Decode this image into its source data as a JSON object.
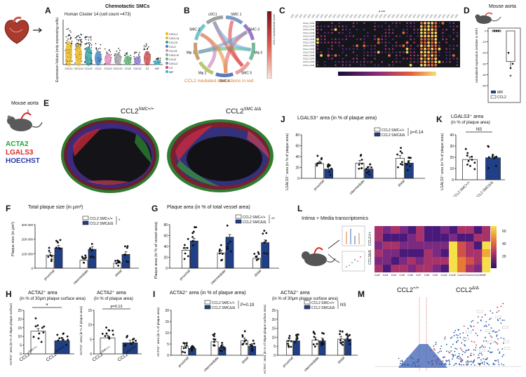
{
  "colors": {
    "white_bar": "#ffffff",
    "navy_bar": "#1f3f86",
    "accent_orange": "#e07a2a",
    "acta2_green": "#22a838",
    "lgals3_red": "#e02424",
    "hoechst_blue": "#2a3aa8"
  },
  "panels": {
    "A": {
      "letter": "A",
      "title": "Chemotactic SMCs",
      "subtitle": "Human Cluster 14 (cell count =473)",
      "ylabel": "Expression Values (only expressing cells)",
      "genes": [
        "CXCL1",
        "CXCL14",
        "CCL19",
        "CCL2",
        "CCL21",
        "CXCL12",
        "CCL8",
        "CXCL2",
        "C3",
        "MIF"
      ]
    },
    "B": {
      "letter": "B",
      "caption": "CCL2 mediated interactions in red",
      "segments": [
        "SMC 1",
        "SMC 3",
        "Mφ 3",
        "SMC 5",
        "SMC 4",
        "Mφ 2",
        "Mφ 1",
        "SMC 2",
        "cDC1"
      ],
      "colorbar_label": "CCL2 involvement score"
    },
    "C": {
      "letter": "C",
      "xlabel": "p-val"
    },
    "D": {
      "letter": "D",
      "title": "Mouse aorta",
      "ylabel": "normalized expression (relative to MIF)",
      "ticks": [
        "0",
        "-10",
        "-20",
        "-30",
        "-40",
        "-50"
      ],
      "legend": [
        "MIF",
        "CCL2"
      ],
      "sig": "*"
    },
    "E": {
      "letter": "E",
      "mouse": "Mouse aorta",
      "stains": [
        "ACTA2",
        "LGALS3",
        "HOECHST"
      ],
      "title_left": "CCL2",
      "title_left_sup": "SMC+/+",
      "title_right": "CCL2",
      "title_right_sup": "SMC Δ/Δ"
    },
    "F": {
      "letter": "F",
      "title": "Total plaque size (in µm²)",
      "ylabel": "Plaque size (in µm²)",
      "sig": "*",
      "ticks": [
        "300 000",
        "200 000",
        "100 000",
        "0"
      ]
    },
    "G": {
      "letter": "G",
      "title": "Plaque area (in % of total vessel area)",
      "ylabel": "Plaque area (in % of vessel area)",
      "sig": "**",
      "ticks": [
        "80",
        "60",
        "40",
        "20",
        "0"
      ]
    },
    "H": {
      "letter": "H",
      "title1": "ACTA2⁺ area",
      "title1b": "(in % of 30µm plaque surface area)",
      "ylabel1": "ACTA2⁺ area (in % of 30µm plaque surface)",
      "sig1": "*",
      "ticks1": [
        "25",
        "20",
        "15",
        "10",
        "5",
        "0"
      ],
      "title2": "ACTA2⁺ area",
      "title2b": "(in % of plaque area)",
      "ylabel2": "ACTA2⁺ area (in % of plaque area)",
      "sig2": "p=0.13",
      "ticks2": [
        "15",
        "10",
        "5",
        "0"
      ]
    },
    "I": {
      "letter": "I",
      "title1": "ACTA2⁺ area (in % of plaque area)",
      "ylabel1": "ACTA2⁺ area (in % of plaque area)",
      "sig1": "P=0.19",
      "ticks1": [
        "20",
        "15",
        "10",
        "5",
        "0"
      ],
      "title2": "ACTA2⁺ area",
      "title2b": "(in % of 30µm plaque surface area)",
      "ylabel2": "ACTA2⁺ area (in % of 30µm plaque surface area)",
      "sig2": "NS",
      "ticks2": [
        "25",
        "20",
        "15",
        "10",
        "5",
        "0"
      ]
    },
    "J": {
      "letter": "J",
      "title": "LGALS3⁺ area (in % of plaque area)",
      "ylabel": "LGALS3⁺ area (in % of plaque area)",
      "sig": "p=0.14",
      "ticks": [
        "80",
        "60",
        "40",
        "20",
        "0"
      ]
    },
    "K": {
      "letter": "K",
      "title": "LGALS3⁺ area",
      "title_b": "(in % of plaque area)",
      "ylabel": "LGALS3⁺ area (in % of plaque area)",
      "sig": "NS",
      "ticks": [
        "40",
        "30",
        "20",
        "10",
        "0"
      ]
    },
    "L": {
      "letter": "L",
      "title": "Intima + Media transcriptomics",
      "row_labels": [
        "CCL2+/+",
        "CCL2Δ/Δ"
      ],
      "col_labels": [
        "Ccl2",
        "Ccl3",
        "Ccl4",
        "Ccl5",
        "Ccl6",
        "Ccl7",
        "Ccl8",
        "Ccl9",
        "Cxcl1",
        "Cxcl2",
        "Cxcl12",
        "Cxcl14",
        "Cxcl16",
        "Mif"
      ],
      "colorbar_ticks": [
        "60",
        "40",
        "20"
      ]
    },
    "M": {
      "letter": "M",
      "left_label": "CCL2",
      "left_sup": "+/+",
      "right_label": "CCL2",
      "right_sup": "Δ/Δ"
    }
  },
  "groups": {
    "wt": "CCL2",
    "wt_sup": "SMC+/+",
    "ko": "CCL2",
    "ko_sup": "SMCΔ/Δ",
    "sites": [
      "proximal",
      "intermediate",
      "distal"
    ]
  },
  "chart_data": [
    {
      "type": "bar",
      "panel": "D",
      "title": "Mouse aorta",
      "categories": [
        "MIF",
        "CCL2"
      ],
      "values": [
        0,
        -28
      ],
      "ylim": [
        -50,
        0
      ]
    },
    {
      "type": "bar",
      "panel": "F",
      "title": "Total plaque size (in µm²)",
      "categories": [
        "proximal",
        "intermediate",
        "distal"
      ],
      "series": [
        {
          "name": "CCL2 SMC+/+",
          "values": [
            90000,
            55000,
            35000
          ]
        },
        {
          "name": "CCL2 SMCΔ/Δ",
          "values": [
            140000,
            130000,
            95000
          ]
        }
      ],
      "ylim": [
        0,
        300000
      ]
    },
    {
      "type": "bar",
      "panel": "G",
      "title": "Plaque area (in % of total vessel area)",
      "categories": [
        "proximal",
        "intermediate",
        "distal"
      ],
      "series": [
        {
          "name": "CCL2 SMC+/+",
          "values": [
            33,
            28,
            18
          ]
        },
        {
          "name": "CCL2 SMCΔ/Δ",
          "values": [
            50,
            57,
            47
          ]
        }
      ],
      "ylim": [
        0,
        80
      ]
    },
    {
      "type": "bar",
      "panel": "H1",
      "title": "ACTA2⁺ area (in % of 30µm plaque surface area)",
      "categories": [
        "CCL2 SMC+/+",
        "CCL2 SMCΔ/Δ"
      ],
      "values": [
        13,
        7.5
      ],
      "ylim": [
        0,
        25
      ]
    },
    {
      "type": "bar",
      "panel": "H2",
      "title": "ACTA2⁺ area (in % of plaque area)",
      "categories": [
        "CCL2 SMC+/+",
        "CCL2 SMCΔ/Δ"
      ],
      "values": [
        5.5,
        3.8
      ],
      "ylim": [
        0,
        15
      ]
    },
    {
      "type": "bar",
      "panel": "I1",
      "title": "ACTA2⁺ area (in % of plaque area)",
      "categories": [
        "proximal",
        "intermediate",
        "distal"
      ],
      "series": [
        {
          "name": "CCL2 SMC+/+",
          "values": [
            4,
            6,
            6.5
          ]
        },
        {
          "name": "CCL2 SMCΔ/Δ",
          "values": [
            3,
            3.5,
            4
          ]
        }
      ],
      "ylim": [
        0,
        20
      ]
    },
    {
      "type": "bar",
      "panel": "I2",
      "title": "ACTA2⁺ area (in % of 30µm plaque surface area)",
      "categories": [
        "proximal",
        "intermediate",
        "distal"
      ],
      "series": [
        {
          "name": "CCL2 SMC+/+",
          "values": [
            8,
            8.5,
            9
          ]
        },
        {
          "name": "CCL2 SMCΔ/Δ",
          "values": [
            8,
            8,
            9
          ]
        }
      ],
      "ylim": [
        0,
        25
      ]
    },
    {
      "type": "bar",
      "panel": "J",
      "title": "LGALS3⁺ area (in % of plaque area)",
      "categories": [
        "proximal",
        "intermediate",
        "distal"
      ],
      "series": [
        {
          "name": "CCL2 SMC+/+",
          "values": [
            27,
            28,
            37
          ]
        },
        {
          "name": "CCL2 SMCΔ/Δ",
          "values": [
            17,
            17,
            28
          ]
        }
      ],
      "ylim": [
        0,
        80
      ]
    },
    {
      "type": "bar",
      "panel": "K",
      "title": "LGALS3⁺ area (in % of plaque area)",
      "categories": [
        "CCL2 SMC+/+",
        "CCL2 SMCΔ/Δ"
      ],
      "values": [
        18,
        19.5
      ],
      "ylim": [
        0,
        40
      ]
    },
    {
      "type": "heatmap",
      "panel": "L",
      "title": "Intima + Media transcriptomics",
      "rows": [
        "CCL2+/+",
        "CCL2Δ/Δ"
      ],
      "columns": 14,
      "range": [
        0,
        70
      ]
    }
  ]
}
